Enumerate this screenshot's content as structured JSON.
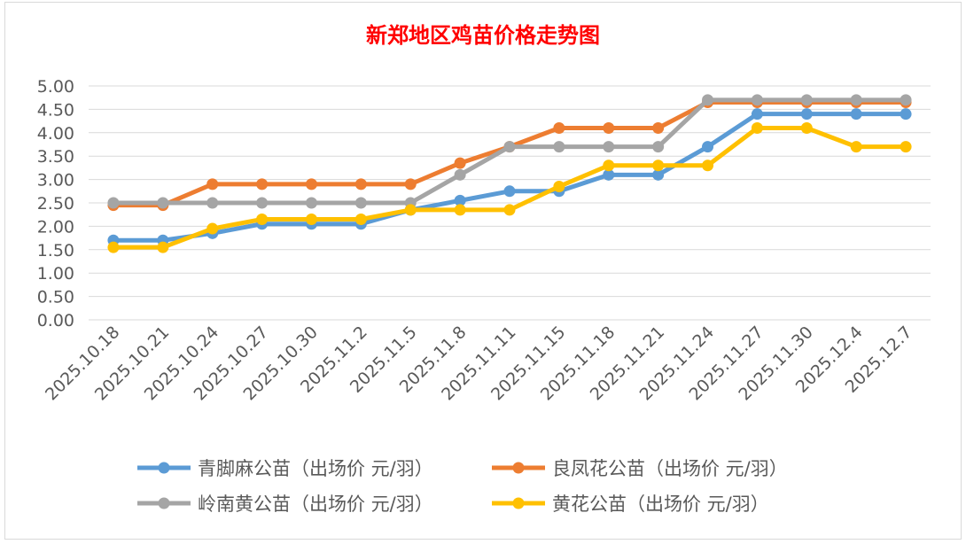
{
  "chart_data": {
    "type": "line",
    "title": "新郑地区鸡苗价格走势图",
    "xlabel": "",
    "ylabel": "",
    "ylim": [
      0,
      5
    ],
    "yticks": [
      "0.00",
      "0.50",
      "1.00",
      "1.50",
      "2.00",
      "2.50",
      "3.00",
      "3.50",
      "4.00",
      "4.50",
      "5.00"
    ],
    "grid": true,
    "legend_position": "bottom",
    "categories": [
      "2025.10.18",
      "2025.10.21",
      "2025.10.24",
      "2025.10.27",
      "2025.10.30",
      "2025.11.2",
      "2025.11.5",
      "2025.11.8",
      "2025.11.11",
      "2025.11.15",
      "2025.11.18",
      "2025.11.21",
      "2025.11.24",
      "2025.11.27",
      "2025.11.30",
      "2025.12.4",
      "2025.12.7"
    ],
    "series": [
      {
        "name": "青脚麻公苗（出场价 元/羽）",
        "color": "#5b9bd5",
        "values": [
          1.7,
          1.7,
          1.85,
          2.05,
          2.05,
          2.05,
          2.35,
          2.55,
          2.75,
          2.75,
          3.1,
          3.1,
          3.7,
          4.4,
          4.4,
          4.4,
          4.4
        ]
      },
      {
        "name": "良凤花公苗（出场价 元/羽）",
        "color": "#ed7d31",
        "values": [
          2.45,
          2.45,
          2.9,
          2.9,
          2.9,
          2.9,
          2.9,
          3.35,
          3.7,
          4.1,
          4.1,
          4.1,
          4.65,
          4.65,
          4.65,
          4.65,
          4.65
        ]
      },
      {
        "name": "岭南黄公苗（出场价 元/羽）",
        "color": "#a5a5a5",
        "values": [
          2.5,
          2.5,
          2.5,
          2.5,
          2.5,
          2.5,
          2.5,
          3.1,
          3.7,
          3.7,
          3.7,
          3.7,
          4.7,
          4.7,
          4.7,
          4.7,
          4.7
        ]
      },
      {
        "name": "黄花公苗（出场价 元/羽）",
        "color": "#ffc000",
        "values": [
          1.55,
          1.55,
          1.95,
          2.15,
          2.15,
          2.15,
          2.35,
          2.35,
          2.35,
          2.85,
          3.3,
          3.3,
          3.3,
          4.1,
          4.1,
          3.7,
          3.7
        ]
      }
    ]
  }
}
